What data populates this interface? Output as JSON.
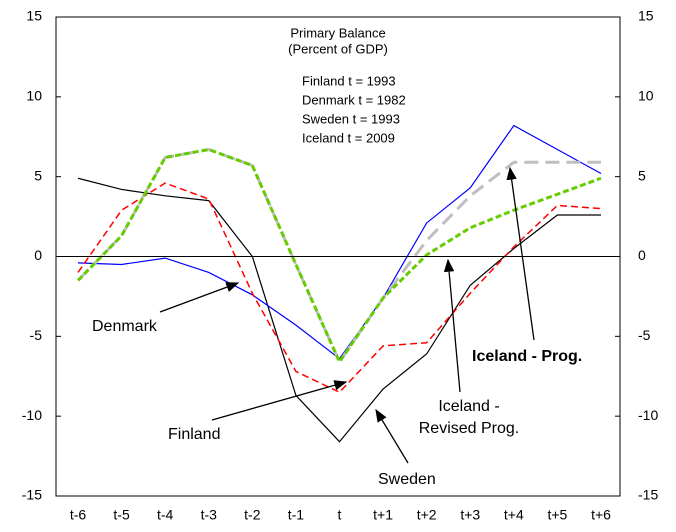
{
  "chart_data": {
    "type": "line",
    "title": "Primary Balance",
    "subtitle": "(Percent of GDP)",
    "notes": [
      "Finland t = 1993",
      "Denmark t = 1982",
      "Sweden t = 1993",
      "Iceland t = 2009"
    ],
    "categories": [
      "t-6",
      "t-5",
      "t-4",
      "t-3",
      "t-2",
      "t-1",
      "t",
      "t+1",
      "t+2",
      "t+3",
      "t+4",
      "t+5",
      "t+6"
    ],
    "ylim": [
      -15,
      15
    ],
    "yticks": [
      -15,
      -10,
      -5,
      0,
      5,
      10,
      15
    ],
    "y2lim": [
      -15,
      15
    ],
    "y2ticks": [
      -15,
      -10,
      -5,
      0,
      5,
      10,
      15
    ],
    "grid": false,
    "series": [
      {
        "name": "Sweden",
        "color": "#000000",
        "dash": "solid",
        "values": [
          4.9,
          4.2,
          3.8,
          3.5,
          0.0,
          -8.7,
          -11.6,
          -8.3,
          -6.1,
          -1.8,
          0.5,
          2.6,
          2.6
        ]
      },
      {
        "name": "Denmark",
        "color": "#0000ff",
        "dash": "solid",
        "values": [
          -0.4,
          -0.5,
          -0.1,
          -1.0,
          -2.4,
          -4.3,
          -6.4,
          -2.6,
          2.1,
          4.3,
          8.2,
          6.7,
          5.2
        ]
      },
      {
        "name": "Finland",
        "color": "#ff0000",
        "dash": "dashed",
        "values": [
          -1.0,
          2.9,
          4.6,
          3.6,
          -2.3,
          -7.2,
          -8.5,
          -5.6,
          -5.4,
          -2.3,
          0.6,
          3.2,
          3.0
        ]
      },
      {
        "name": "Iceland - Prog.",
        "color": "#bfbfbf",
        "dash": "long-dashed",
        "values": [
          -1.5,
          1.3,
          6.2,
          6.7,
          5.7,
          -0.5,
          -6.6,
          -2.6,
          1.0,
          3.8,
          5.9,
          5.9,
          5.9
        ]
      },
      {
        "name": "Iceland - Revised Prog.",
        "color": "#66cc00",
        "dash": "dotted",
        "values": [
          -1.5,
          1.3,
          6.2,
          6.7,
          5.7,
          -0.5,
          -6.6,
          -2.6,
          0.1,
          1.8,
          2.9,
          3.9,
          4.9
        ]
      }
    ]
  }
}
